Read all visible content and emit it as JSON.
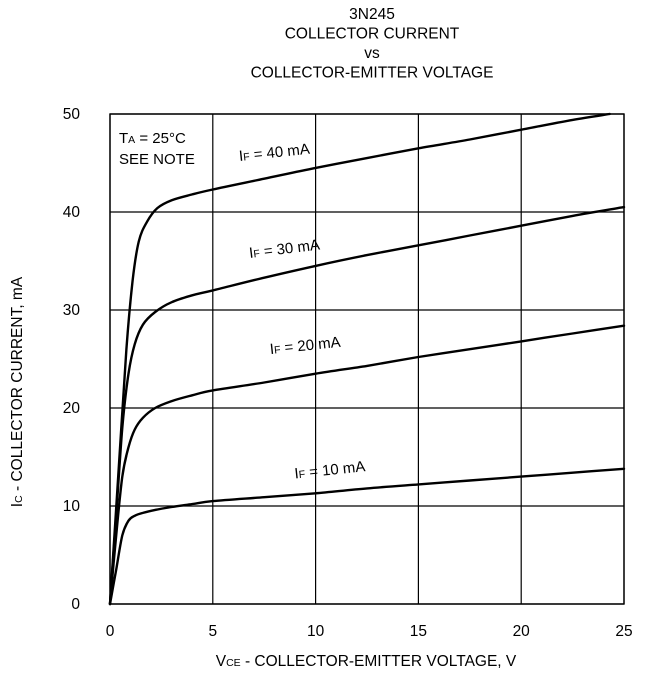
{
  "chart_data": {
    "type": "line",
    "title_lines": [
      "3N245",
      "COLLECTOR CURRENT",
      "vs",
      "COLLECTOR-EMITTER VOLTAGE"
    ],
    "xlabel": {
      "main": "V",
      "sub": "CE",
      "rest": " - COLLECTOR-EMITTER VOLTAGE, V"
    },
    "ylabel": {
      "main": "I",
      "sub": "C",
      "rest": " - COLLECTOR CURRENT, mA"
    },
    "xlim": [
      0,
      25
    ],
    "ylim": [
      0,
      50
    ],
    "x_ticks": [
      "0",
      "5",
      "10",
      "15",
      "20",
      "25"
    ],
    "y_ticks": [
      "0",
      "10",
      "20",
      "30",
      "40",
      "50"
    ],
    "grid": true,
    "note_lines": [
      {
        "main": "T",
        "sub": "A",
        "rest": " = 25°C"
      },
      {
        "main": "SEE NOTE",
        "sub": "",
        "rest": ""
      }
    ],
    "series": [
      {
        "name": {
          "main": "I",
          "sub": "F",
          "rest": " = 40 mA"
        },
        "x": [
          0,
          0.4,
          0.8,
          1.1,
          1.4,
          1.8,
          2.3,
          3,
          4,
          5,
          7.5,
          10,
          12.5,
          15,
          17.5,
          20,
          22.5,
          24.3
        ],
        "y": [
          0,
          13,
          26,
          33,
          37,
          39,
          40.4,
          41.2,
          41.8,
          42.3,
          43.4,
          44.5,
          45.5,
          46.5,
          47.4,
          48.4,
          49.4,
          50
        ]
      },
      {
        "name": {
          "main": "I",
          "sub": "F",
          "rest": " = 30 mA"
        },
        "x": [
          0,
          0.3,
          0.6,
          0.9,
          1.2,
          1.6,
          2.2,
          3,
          4,
          5,
          7.5,
          10,
          12.5,
          15,
          17.5,
          20,
          22.5,
          25
        ],
        "y": [
          0,
          9,
          18,
          23.5,
          26.5,
          28.5,
          29.8,
          30.8,
          31.5,
          32,
          33.3,
          34.5,
          35.6,
          36.6,
          37.6,
          38.6,
          39.6,
          40.5
        ]
      },
      {
        "name": {
          "main": "I",
          "sub": "F",
          "rest": " = 20 mA"
        },
        "x": [
          0,
          0.3,
          0.6,
          0.9,
          1.2,
          1.6,
          2.2,
          3,
          4,
          5,
          7.5,
          10,
          12.5,
          15,
          17.5,
          20,
          22.5,
          25
        ],
        "y": [
          0,
          7,
          13,
          16,
          17.8,
          19,
          20,
          20.7,
          21.3,
          21.8,
          22.6,
          23.5,
          24.3,
          25.2,
          26,
          26.8,
          27.6,
          28.4
        ]
      },
      {
        "name": {
          "main": "I",
          "sub": "F",
          "rest": " = 10 mA"
        },
        "x": [
          0,
          0.3,
          0.6,
          0.9,
          1.2,
          1.6,
          2.2,
          3,
          4,
          5,
          7.5,
          10,
          12.5,
          15,
          17.5,
          20,
          22.5,
          25
        ],
        "y": [
          0,
          3.5,
          7,
          8.5,
          9.0,
          9.3,
          9.6,
          9.9,
          10.2,
          10.5,
          10.9,
          11.3,
          11.8,
          12.2,
          12.6,
          13.0,
          13.4,
          13.8
        ]
      }
    ],
    "label_anchors": [
      {
        "x": 6.3,
        "y": 45.2,
        "angle": -6
      },
      {
        "x": 6.8,
        "y": 35.3,
        "angle": -7
      },
      {
        "x": 7.8,
        "y": 25.5,
        "angle": -6
      },
      {
        "x": 9.0,
        "y": 12.8,
        "angle": -6
      }
    ],
    "colors": {
      "line": "#000000",
      "grid": "#000000",
      "background": "#ffffff"
    }
  }
}
